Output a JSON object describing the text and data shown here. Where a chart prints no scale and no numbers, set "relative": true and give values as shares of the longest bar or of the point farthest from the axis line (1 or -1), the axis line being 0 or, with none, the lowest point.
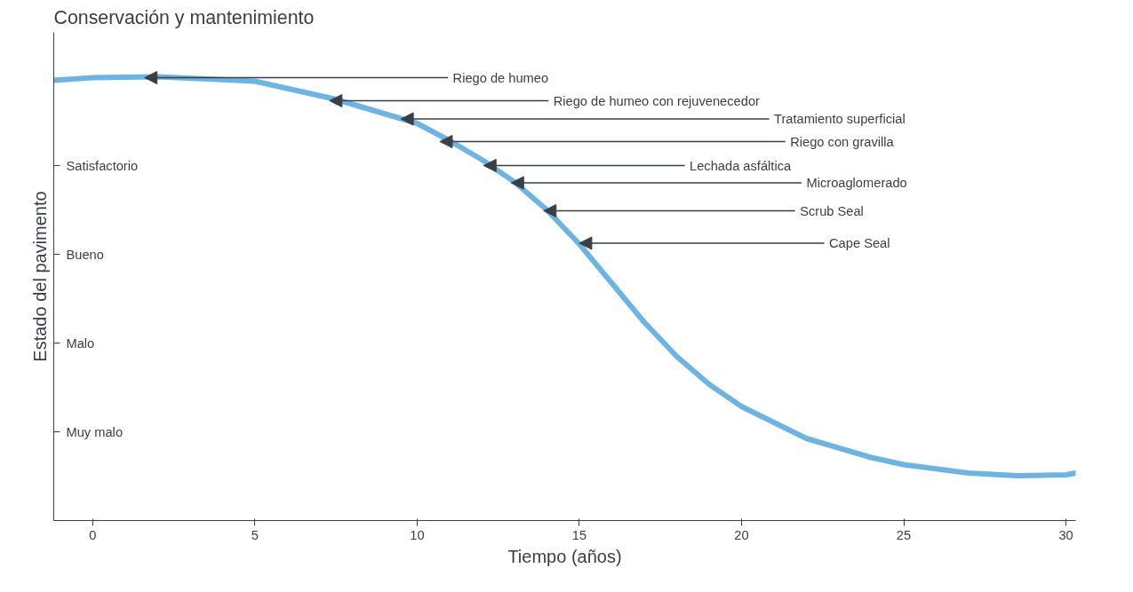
{
  "chart_data": {
    "type": "line",
    "title": "Conservación y mantenimiento",
    "xlabel": "Tiempo (años)",
    "ylabel": "Estado del pavimento",
    "relative": true,
    "x": [
      -1.2,
      0,
      2,
      5,
      7.5,
      10,
      11,
      12,
      13,
      14,
      15,
      16,
      17,
      18,
      19,
      20,
      22,
      24,
      25,
      27,
      28.5,
      30,
      30.3
    ],
    "series": [
      {
        "color": "#6cb4e4",
        "values": [
          0.992,
          0.998,
          1.0,
          0.99,
          0.949,
          0.895,
          0.856,
          0.813,
          0.763,
          0.7,
          0.623,
          0.535,
          0.447,
          0.37,
          0.307,
          0.257,
          0.185,
          0.142,
          0.126,
          0.107,
          0.101,
          0.103,
          0.107
        ]
      }
    ],
    "xlim": [
      -1.2,
      30.3
    ],
    "xticks": [
      0,
      5,
      10,
      15,
      20,
      25,
      30
    ],
    "grid": false,
    "annotations": [
      {
        "text": "Riego de humeo",
        "x": 1.6,
        "y": 0.998
      },
      {
        "text": "Riego de humeo con rejuvenecedor",
        "x": 7.3,
        "y": 0.946
      },
      {
        "text": "Tratamiento superficial",
        "x": 9.5,
        "y": 0.905
      },
      {
        "text": "Riego con gravilla",
        "x": 10.7,
        "y": 0.854
      },
      {
        "text": "Lechada asfáltica",
        "x": 12.05,
        "y": 0.8
      },
      {
        "text": "Microaglomerado",
        "x": 12.9,
        "y": 0.761
      },
      {
        "text": "Scrub Seal",
        "x": 13.9,
        "y": 0.698
      },
      {
        "text": "Cape Seal",
        "x": 15.0,
        "y": 0.625
      },
      "Satisfactorio",
      "Bueno",
      "Malo",
      "Muy malo"
    ]
  }
}
